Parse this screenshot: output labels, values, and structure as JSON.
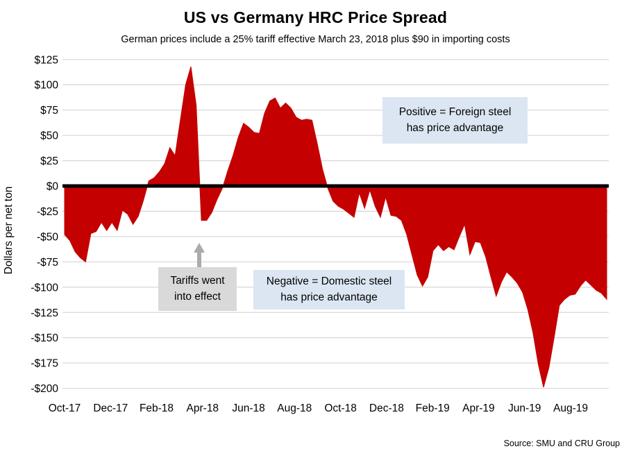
{
  "title": "US vs Germany HRC Price Spread",
  "subtitle": "German prices include a 25% tariff effective March 23, 2018 plus $90 in importing costs",
  "source": "Source: SMU and CRU Group",
  "y_axis": {
    "title": "Dollars per net ton"
  },
  "annotations": {
    "positive": "Positive = Foreign steel\nhas price advantage",
    "negative": "Negative = Domestic steel\nhas price advantage",
    "tariff": "Tariffs went\ninto effect"
  },
  "colors": {
    "area": "#C40000",
    "zero_line": "#000000",
    "gridline": "#D9D9D9",
    "note_blue_bg": "#DCE6F2",
    "note_gray_bg": "#D9D9D9",
    "arrow": "#ABABAB",
    "text": "#000000"
  },
  "chart_data": {
    "type": "area",
    "title": "US vs Germany HRC Price Spread",
    "subtitle": "German prices include a 25% tariff effective March 23, 2018 plus $90 in importing costs",
    "ylabel": "Dollars per net ton",
    "ylim": [
      -200,
      125
    ],
    "y_tick_step": 25,
    "baseline": 0,
    "grid": "horizontal",
    "legend": "none",
    "x_start": "2017-10-06",
    "x_interval_days": 7,
    "x_tick_labels": [
      "Oct-17",
      "Dec-17",
      "Feb-18",
      "Apr-18",
      "Jun-18",
      "Aug-18",
      "Oct-18",
      "Dec-18",
      "Feb-19",
      "Apr-19",
      "Jun-19",
      "Aug-19"
    ],
    "values": [
      -48,
      -54,
      -65,
      -71,
      -75,
      -47,
      -45,
      -36,
      -44,
      -36,
      -44,
      -24,
      -28,
      -38,
      -30,
      -14,
      5,
      8,
      14,
      22,
      38,
      30,
      65,
      100,
      118,
      80,
      -34,
      -34,
      -26,
      -13,
      -2,
      15,
      30,
      48,
      62,
      58,
      53,
      52,
      72,
      84,
      87,
      77,
      82,
      77,
      68,
      65,
      66,
      65,
      42,
      17,
      -2,
      -15,
      -20,
      -23,
      -27,
      -31,
      -7,
      -22,
      -4,
      -20,
      -31,
      -11,
      -29,
      -30,
      -34,
      -48,
      -68,
      -88,
      -99,
      -90,
      -64,
      -58,
      -64,
      -60,
      -63,
      -50,
      -38,
      -68,
      -55,
      -56,
      -70,
      -90,
      -109,
      -95,
      -85,
      -90,
      -96,
      -105,
      -122,
      -145,
      -176,
      -199,
      -180,
      -150,
      -118,
      -112,
      -108,
      -107,
      -99,
      -93,
      -98,
      -103,
      -106,
      -112
    ]
  }
}
